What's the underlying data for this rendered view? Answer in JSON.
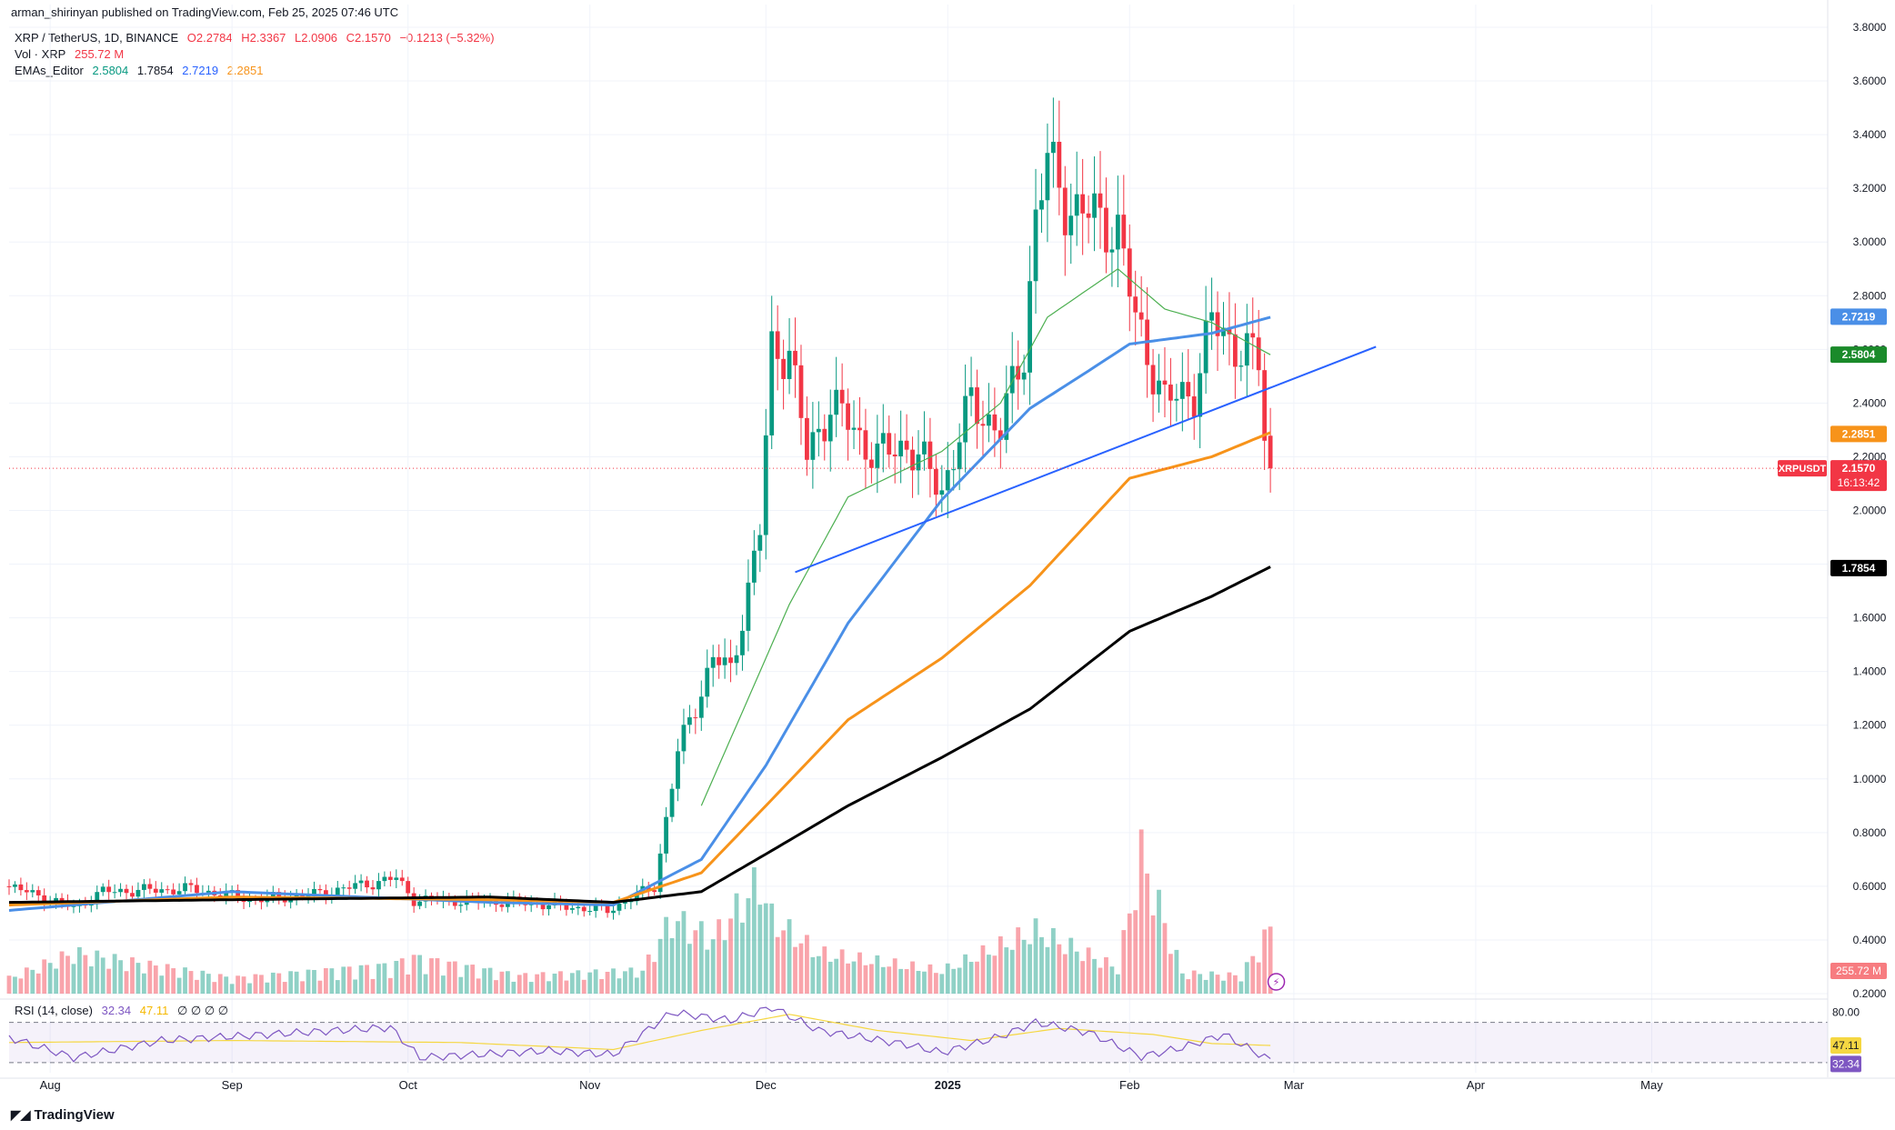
{
  "publisher_line": "arman_shirinyan published on TradingView.com, Feb 25, 2025 07:46 UTC",
  "symbol_line": {
    "symbol": "XRP / TetherUS, 1D, BINANCE",
    "open": "O2.2784",
    "high": "H2.3367",
    "low": "L2.0906",
    "close": "C2.1570",
    "change": "−0.1213 (−5.32%)"
  },
  "volume_line": {
    "label": "Vol · XRP",
    "value": "255.72 M"
  },
  "ema_line": {
    "label": "EMAs_Editor",
    "v1": "2.5804",
    "v2": "1.7854",
    "v3": "2.7219",
    "v4": "2.2851"
  },
  "rsi_line": {
    "label": "RSI (14, close)",
    "v1": "32.34",
    "v2": "47.11",
    "v3": "∅ ∅ ∅ ∅"
  },
  "brand": "TradingView",
  "price_axis_ticks": [
    "3.8000",
    "3.6000",
    "3.4000",
    "3.2000",
    "3.0000",
    "2.8000",
    "2.6000",
    "2.4000",
    "2.2000",
    "2.0000",
    "1.8000",
    "1.6000",
    "1.4000",
    "1.2000",
    "1.0000",
    "0.8000",
    "0.6000",
    "0.4000",
    "0.2000"
  ],
  "rsi_axis_ticks": [
    "80.00"
  ],
  "time_axis_ticks": [
    "Aug",
    "Sep",
    "Oct",
    "Nov",
    "Dec",
    "2025",
    "Feb",
    "Mar",
    "Apr",
    "May"
  ],
  "price_tags": {
    "ema_blue": "2.7219",
    "ema_green": "2.5804",
    "ema_orange": "2.2851",
    "symbol_tag": "XRPUSDT",
    "last_price": "2.1570",
    "countdown": "16:13:42",
    "ema_black": "1.7854",
    "volume": "255.72 M",
    "rsi_ma": "47.11",
    "rsi": "32.34"
  },
  "colors": {
    "up": "#089981",
    "down": "#f23645",
    "ema_blue": "#4a8fe7",
    "ema_orange": "#f7931a",
    "ema_black": "#000000",
    "ema_green": "#4caf50",
    "trendline": "#2962ff",
    "rsi": "#7e57c2",
    "rsi_ma": "#f5d742"
  },
  "chart_data": {
    "type": "candlestick",
    "ema_anchors": [
      {
        "name": "EMA",
        "color": "#4a8fe7",
        "points": [
          [
            "2024-07-25",
            0.51
          ],
          [
            "2024-09-01",
            0.58
          ],
          [
            "2024-10-15",
            0.54
          ],
          [
            "2024-11-05",
            0.53
          ],
          [
            "2024-11-20",
            0.7
          ],
          [
            "2024-12-01",
            1.05
          ],
          [
            "2024-12-15",
            1.58
          ],
          [
            "2024-12-31",
            2.04
          ],
          [
            "2025-01-15",
            2.38
          ],
          [
            "2025-01-25",
            2.52
          ],
          [
            "2025-02-01",
            2.62
          ],
          [
            "2025-02-15",
            2.66
          ],
          [
            "2025-02-25",
            2.72
          ]
        ]
      },
      {
        "name": "EMA",
        "color": "#f7931a",
        "points": [
          [
            "2024-07-25",
            0.53
          ],
          [
            "2024-09-01",
            0.56
          ],
          [
            "2024-10-15",
            0.55
          ],
          [
            "2024-11-05",
            0.54
          ],
          [
            "2024-11-20",
            0.65
          ],
          [
            "2024-12-01",
            0.9
          ],
          [
            "2024-12-15",
            1.22
          ],
          [
            "2024-12-31",
            1.45
          ],
          [
            "2025-01-15",
            1.72
          ],
          [
            "2025-02-01",
            2.12
          ],
          [
            "2025-02-15",
            2.2
          ],
          [
            "2025-02-25",
            2.29
          ]
        ]
      },
      {
        "name": "EMA",
        "color": "#000000",
        "points": [
          [
            "2024-07-25",
            0.54
          ],
          [
            "2024-09-01",
            0.55
          ],
          [
            "2024-10-15",
            0.56
          ],
          [
            "2024-11-05",
            0.54
          ],
          [
            "2024-11-20",
            0.58
          ],
          [
            "2024-12-01",
            0.72
          ],
          [
            "2024-12-15",
            0.9
          ],
          [
            "2024-12-31",
            1.08
          ],
          [
            "2025-01-15",
            1.26
          ],
          [
            "2025-02-01",
            1.55
          ],
          [
            "2025-02-15",
            1.68
          ],
          [
            "2025-02-25",
            1.79
          ]
        ]
      },
      {
        "name": "EMA",
        "color": "#4caf50",
        "points": [
          [
            "2024-11-20",
            0.9
          ],
          [
            "2024-12-05",
            1.65
          ],
          [
            "2024-12-15",
            2.05
          ],
          [
            "2024-12-31",
            2.22
          ],
          [
            "2025-01-10",
            2.4
          ],
          [
            "2025-01-18",
            2.72
          ],
          [
            "2025-01-30",
            2.9
          ],
          [
            "2025-02-07",
            2.75
          ],
          [
            "2025-02-15",
            2.7
          ],
          [
            "2025-02-25",
            2.58
          ]
        ]
      }
    ],
    "trendline": {
      "from": [
        "2024-12-06",
        1.77
      ],
      "to": [
        "2025-03-15",
        2.61
      ]
    },
    "price_anchors": [
      [
        "2024-07-25",
        0.6
      ],
      [
        "2024-08-05",
        0.52
      ],
      [
        "2024-08-10",
        0.58
      ],
      [
        "2024-08-25",
        0.59
      ],
      [
        "2024-09-05",
        0.55
      ],
      [
        "2024-09-15",
        0.57
      ],
      [
        "2024-09-29",
        0.63
      ],
      [
        "2024-10-02",
        0.55
      ],
      [
        "2024-10-20",
        0.54
      ],
      [
        "2024-11-04",
        0.51
      ],
      [
        "2024-11-12",
        0.6
      ],
      [
        "2024-11-16",
        1.1
      ],
      [
        "2024-11-22",
        1.45
      ],
      [
        "2024-11-25",
        1.4
      ],
      [
        "2024-11-30",
        1.92
      ],
      [
        "2024-12-02",
        2.6
      ],
      [
        "2024-12-05",
        2.6
      ],
      [
        "2024-12-08",
        2.2
      ],
      [
        "2024-12-12",
        2.4
      ],
      [
        "2024-12-20",
        2.2
      ],
      [
        "2024-12-25",
        2.25
      ],
      [
        "2024-12-31",
        2.08
      ],
      [
        "2025-01-05",
        2.4
      ],
      [
        "2025-01-10",
        2.3
      ],
      [
        "2025-01-14",
        2.6
      ],
      [
        "2025-01-16",
        3.1
      ],
      [
        "2025-01-18",
        3.3
      ],
      [
        "2025-01-21",
        3.15
      ],
      [
        "2025-01-25",
        3.1
      ],
      [
        "2025-01-30",
        3.05
      ],
      [
        "2025-02-02",
        2.7
      ],
      [
        "2025-02-04",
        2.6
      ],
      [
        "2025-02-07",
        2.4
      ],
      [
        "2025-02-12",
        2.45
      ],
      [
        "2025-02-15",
        2.7
      ],
      [
        "2025-02-20",
        2.6
      ],
      [
        "2025-02-23",
        2.55
      ],
      [
        "2025-02-24",
        2.28
      ],
      [
        "2025-02-25",
        2.157
      ]
    ],
    "volume_anchors": [
      [
        "2024-07-25",
        60
      ],
      [
        "2024-08-05",
        160
      ],
      [
        "2024-09-01",
        60
      ],
      [
        "2024-09-28",
        110
      ],
      [
        "2024-10-02",
        140
      ],
      [
        "2024-10-20",
        70
      ],
      [
        "2024-11-10",
        90
      ],
      [
        "2024-11-15",
        300
      ],
      [
        "2024-11-22",
        220
      ],
      [
        "2024-11-30",
        450
      ],
      [
        "2024-12-02",
        300
      ],
      [
        "2024-12-10",
        160
      ],
      [
        "2024-12-31",
        90
      ],
      [
        "2025-01-16",
        250
      ],
      [
        "2025-01-30",
        100
      ],
      [
        "2025-02-03",
        550
      ],
      [
        "2025-02-10",
        80
      ],
      [
        "2025-02-20",
        70
      ],
      [
        "2025-02-25",
        255.72
      ]
    ],
    "rsi_anchors": [
      [
        "2024-07-25",
        55
      ],
      [
        "2024-08-05",
        35
      ],
      [
        "2024-08-20",
        52
      ],
      [
        "2024-09-28",
        65
      ],
      [
        "2024-10-03",
        35
      ],
      [
        "2024-10-25",
        42
      ],
      [
        "2024-11-05",
        38
      ],
      [
        "2024-11-15",
        80
      ],
      [
        "2024-11-25",
        72
      ],
      [
        "2024-12-02",
        85
      ],
      [
        "2024-12-10",
        62
      ],
      [
        "2024-12-25",
        48
      ],
      [
        "2024-12-31",
        40
      ],
      [
        "2025-01-10",
        56
      ],
      [
        "2025-01-16",
        70
      ],
      [
        "2025-01-25",
        60
      ],
      [
        "2025-02-03",
        36
      ],
      [
        "2025-02-10",
        45
      ],
      [
        "2025-02-17",
        58
      ],
      [
        "2025-02-25",
        32.34
      ]
    ],
    "rsi_ma_anchors": [
      [
        "2024-07-25",
        50
      ],
      [
        "2024-09-01",
        52
      ],
      [
        "2024-10-10",
        50
      ],
      [
        "2024-11-05",
        43
      ],
      [
        "2024-11-20",
        62
      ],
      [
        "2024-12-05",
        78
      ],
      [
        "2024-12-20",
        62
      ],
      [
        "2025-01-05",
        52
      ],
      [
        "2025-01-20",
        64
      ],
      [
        "2025-02-05",
        58
      ],
      [
        "2025-02-15",
        49
      ],
      [
        "2025-02-25",
        47.11
      ]
    ],
    "x_start": "2024-07-25",
    "x_end": "2025-05-31",
    "price_ylim": [
      0.2,
      3.8
    ],
    "rsi_ylim": [
      20,
      85
    ]
  }
}
